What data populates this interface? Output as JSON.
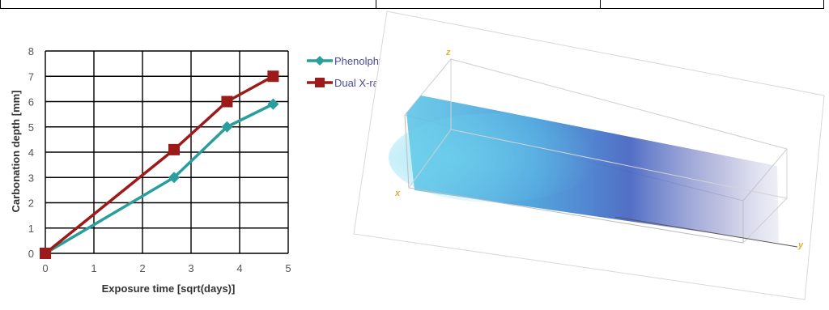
{
  "chart_data": {
    "type": "line",
    "xlabel": "Exposure time [sqrt(days)]",
    "ylabel": "Carbonation depth [mm]",
    "xlim": [
      0,
      5
    ],
    "ylim": [
      0,
      8
    ],
    "xticks": [
      "0",
      "1",
      "2",
      "3",
      "4",
      "5"
    ],
    "yticks": [
      "0",
      "1",
      "2",
      "3",
      "4",
      "5",
      "6",
      "7",
      "8"
    ],
    "grid": true,
    "legend_position": "right",
    "series": [
      {
        "name": "Phenolphtalein",
        "color": "#2a9d9d",
        "marker": "diamond",
        "x": [
          0,
          2.65,
          3.74,
          4.69
        ],
        "y": [
          0,
          3.0,
          5.0,
          5.9
        ]
      },
      {
        "name": "Dual X-ray CT",
        "color": "#9c1a1a",
        "marker": "square",
        "x": [
          0,
          2.65,
          3.74,
          4.69
        ],
        "y": [
          0,
          4.1,
          6.0,
          7.0
        ]
      }
    ]
  },
  "ct_render": {
    "axis_labels": {
      "x": "x",
      "y": "y",
      "z": "z"
    }
  }
}
